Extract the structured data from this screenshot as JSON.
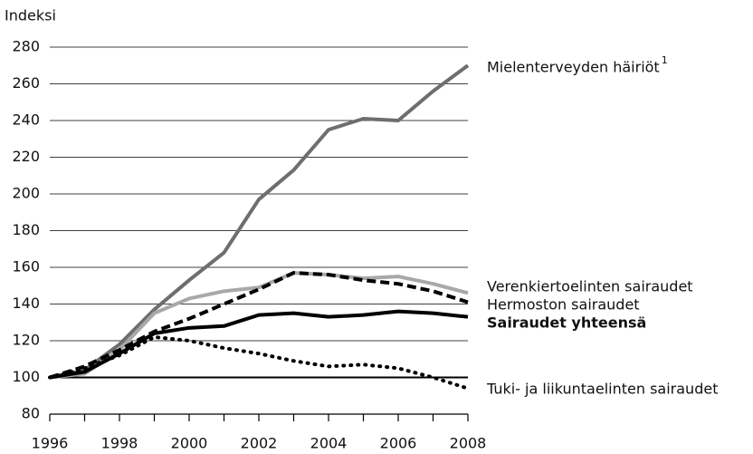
{
  "chart_data": {
    "type": "line",
    "y_label": "Indeksi",
    "x": [
      1996,
      1997,
      1998,
      1999,
      2000,
      2001,
      2002,
      2003,
      2004,
      2005,
      2006,
      2007,
      2008
    ],
    "xlim": [
      1996,
      2008
    ],
    "xticks": [
      1996,
      1998,
      2000,
      2002,
      2004,
      2006,
      2008
    ],
    "x_minor_ticks": [
      1997,
      1999,
      2001,
      2003,
      2005,
      2007
    ],
    "ylim": [
      80,
      280
    ],
    "yticks": [
      80,
      100,
      120,
      140,
      160,
      180,
      200,
      220,
      240,
      260,
      280
    ],
    "baseline": 100,
    "grid": true,
    "series": [
      {
        "name": "Mielenterveyden häiriöt",
        "footnote_mark": "1",
        "color": "#6e6e6e",
        "dash": "solid",
        "bold": false,
        "values": [
          100,
          104,
          118,
          137,
          153,
          168,
          197,
          213,
          235,
          241,
          240,
          256,
          270
        ]
      },
      {
        "name": "Verenkiertoelinten sairaudet",
        "color": "#a8a8a8",
        "dash": "solid",
        "bold": false,
        "values": [
          100,
          102,
          115,
          135,
          143,
          147,
          149,
          157,
          156,
          154,
          155,
          151,
          146
        ]
      },
      {
        "name": "Hermoston sairaudet",
        "color": "#000000",
        "dash": "dashed",
        "bold": false,
        "values": [
          100,
          106,
          115,
          125,
          132,
          140,
          148,
          157,
          156,
          153,
          151,
          147,
          141
        ]
      },
      {
        "name": "Sairaudet yhteensä",
        "color": "#000000",
        "dash": "solid",
        "bold": true,
        "values": [
          100,
          103,
          113,
          124,
          127,
          128,
          134,
          135,
          133,
          134,
          136,
          135,
          133
        ]
      },
      {
        "name": "Tuki- ja liikuntaelinten sairaudet",
        "color": "#000000",
        "dash": "dotted",
        "bold": false,
        "values": [
          100,
          105,
          112,
          122,
          120,
          116,
          113,
          109,
          106,
          107,
          105,
          100,
          94
        ]
      }
    ]
  }
}
